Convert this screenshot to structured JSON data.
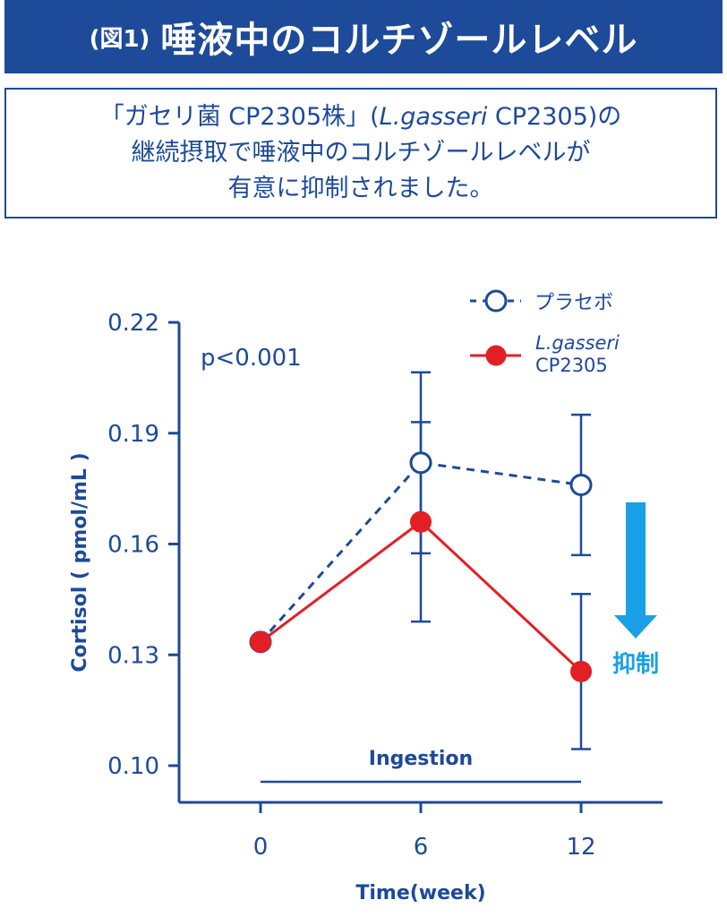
{
  "header": {
    "figure_no": "(図1)",
    "title": "唾液中のコルチゾールレベル"
  },
  "summary": {
    "line1_a": "「ガセリ菌 CP2305株」(",
    "line1_italic": "L.gasseri",
    "line1_b": " CP2305)の",
    "line2": "継続摂取で唾液中のコルチゾールレベルが",
    "line3": "有意に抑制されました。"
  },
  "colors": {
    "navy": "#1d4a99",
    "red": "#e31f26",
    "arrow_blue": "#1aa0e6"
  },
  "chart_data": {
    "type": "line",
    "xlabel": "Time(week)",
    "ylabel": "Cortisol ( pmol/mL )",
    "x": [
      0,
      6,
      12
    ],
    "x_ticks": [
      "0",
      "6",
      "12"
    ],
    "y_ticks": [
      "0.10",
      "0.13",
      "0.16",
      "0.19",
      "0.22"
    ],
    "ylim": [
      0.1,
      0.22
    ],
    "grid": false,
    "legend_position": "top-right",
    "annotation_p": "p<0.001",
    "annotation_period": "Ingestion",
    "annotation_arrow": "抑制",
    "series": [
      {
        "name": "プラセボ",
        "style": "dashed",
        "marker": "open-circle",
        "color": "#1d4a99",
        "values": [
          0.1335,
          0.182,
          0.176
        ],
        "error": [
          null,
          0.0245,
          0.019
        ]
      },
      {
        "name_line1": "L.gasseri",
        "name_line2": "CP2305",
        "style": "solid",
        "marker": "filled-circle",
        "color": "#e31f26",
        "values": [
          0.1335,
          0.166,
          0.1255
        ],
        "error": [
          null,
          0.027,
          0.021
        ]
      }
    ]
  }
}
